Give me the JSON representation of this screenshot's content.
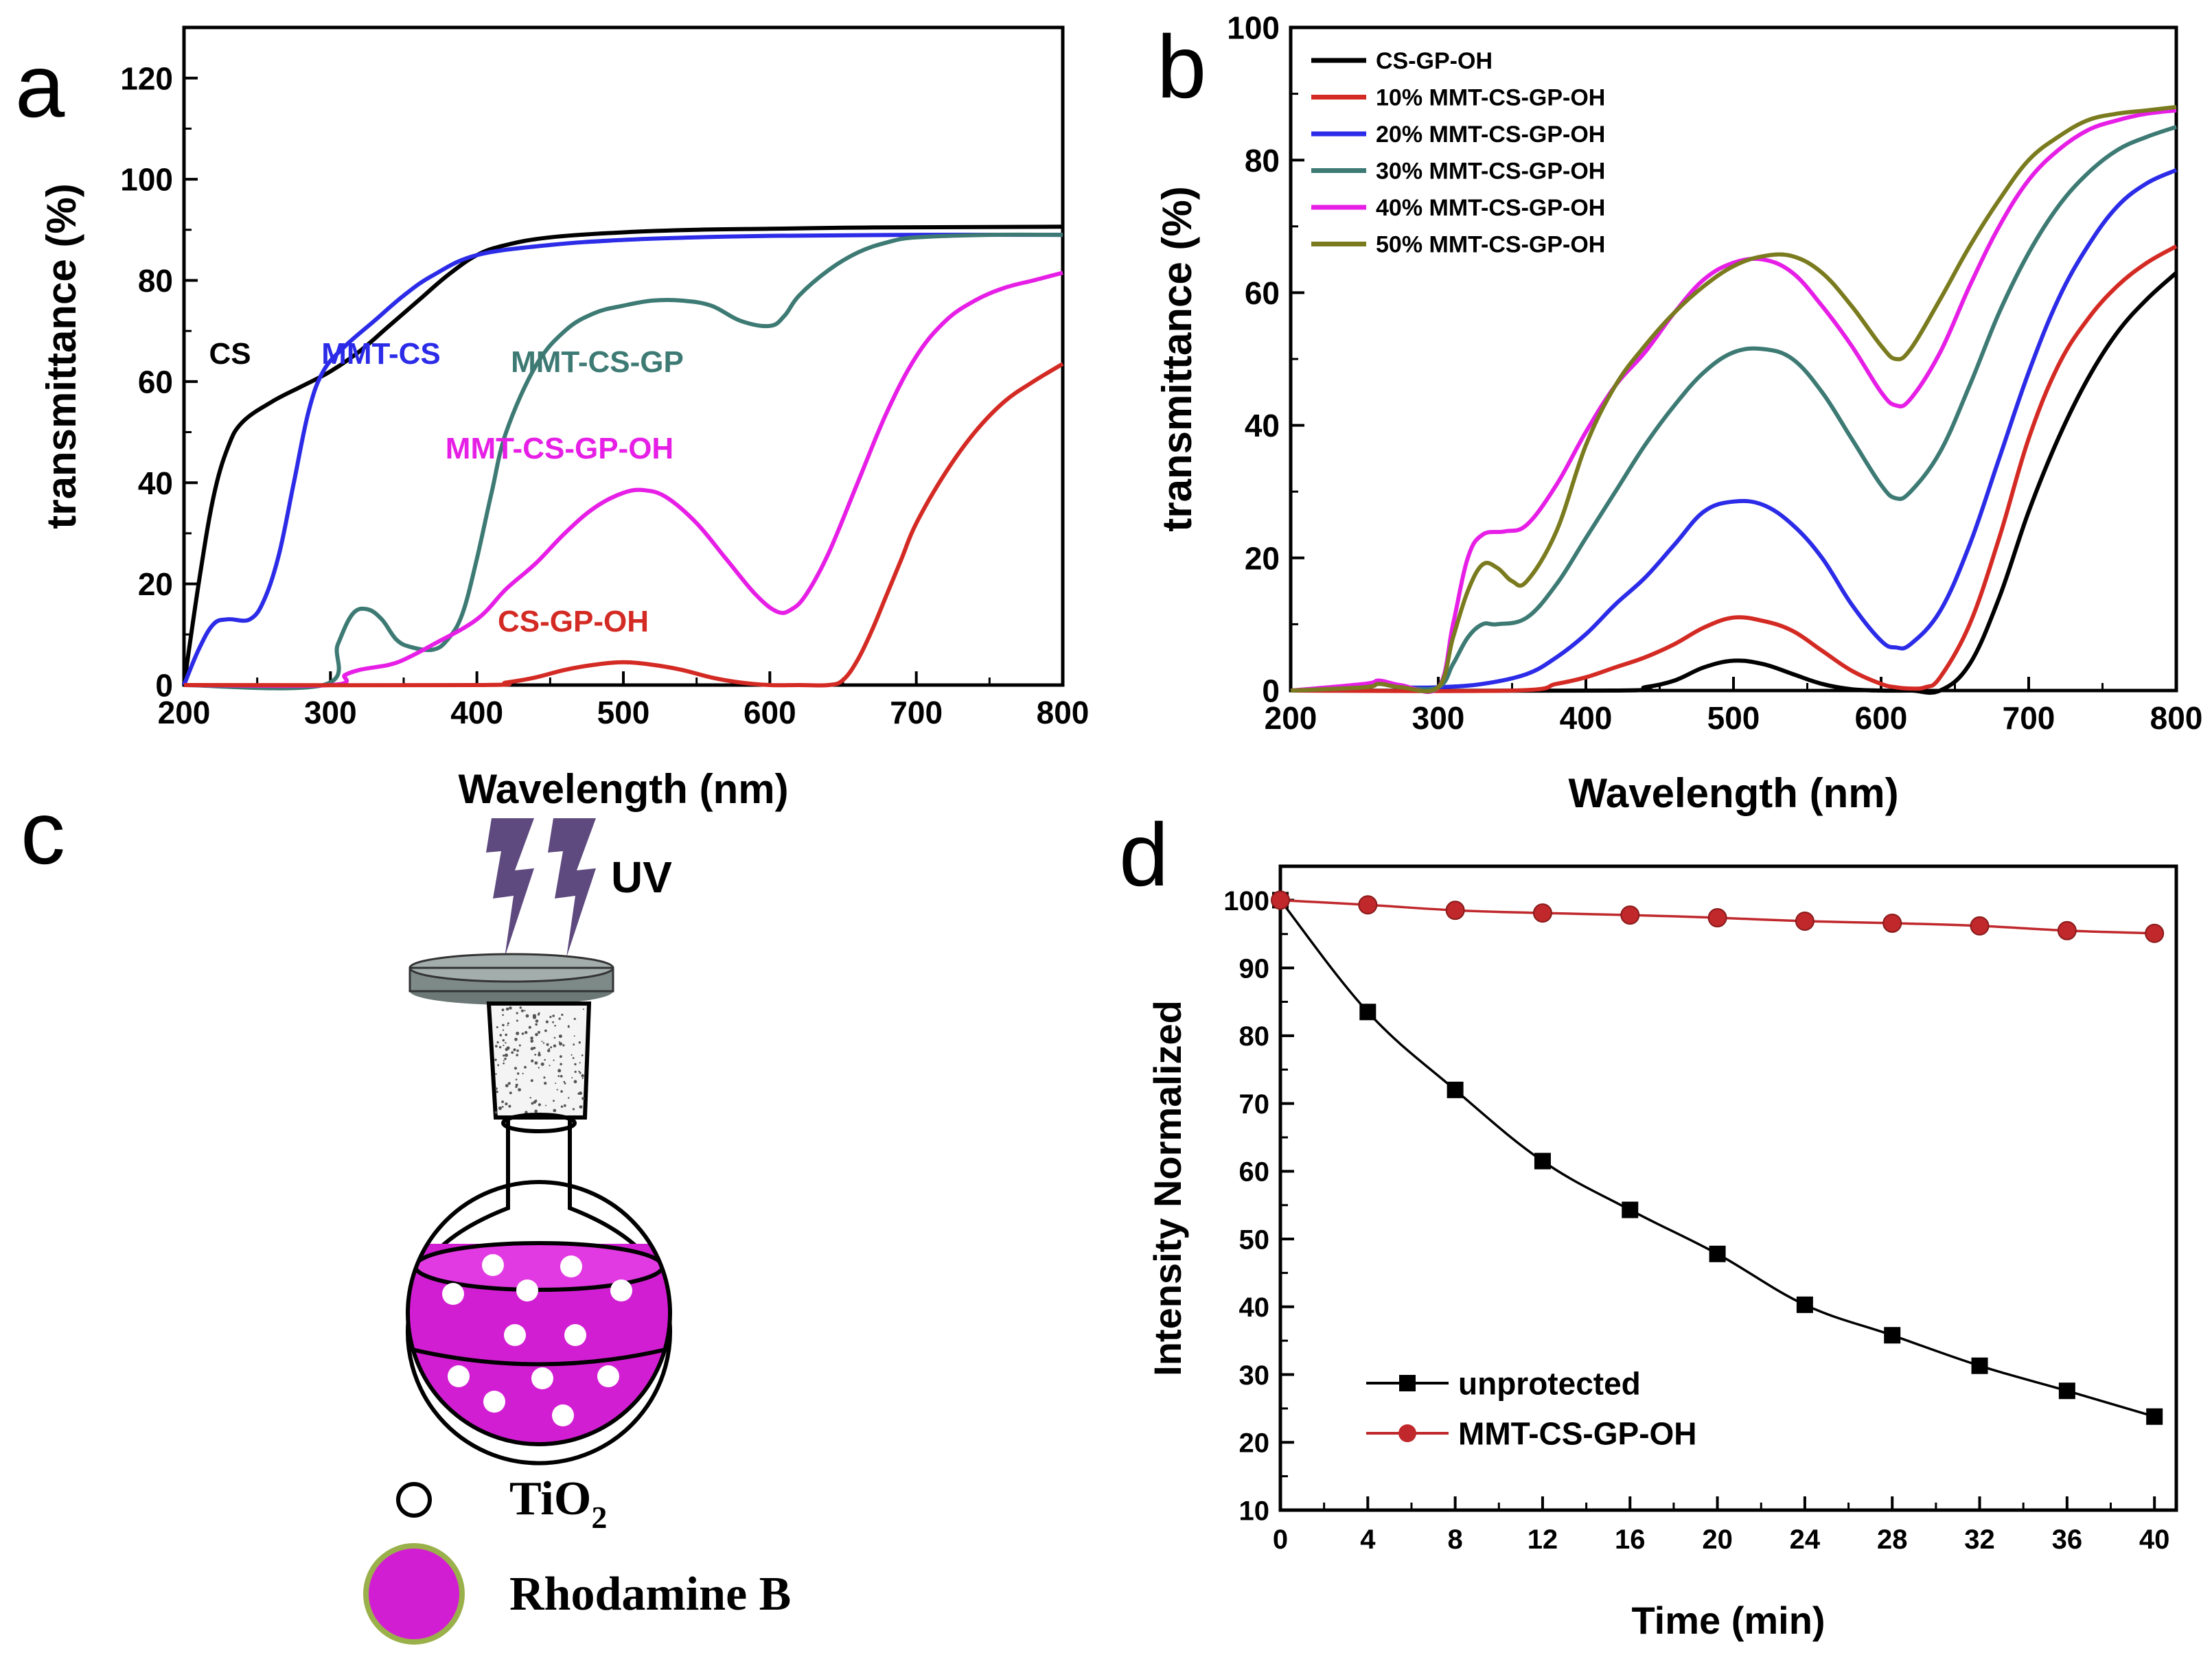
{
  "colors": {
    "black": "#000000",
    "red": "#d42a24",
    "blue": "#2b2be8",
    "teal": "#3d7a74",
    "magenta": "#e61ee6",
    "olive": "#7a7a1e",
    "darkred": "#c0282c",
    "flask_fill": "#d21ed2",
    "bolt": "#5e4a7e",
    "cap": "#7d8a88",
    "rim": "#9ab04a"
  },
  "chart_data": [
    {
      "id": "a",
      "panel_label": "a",
      "type": "line",
      "xlabel": "Wavelength (nm)",
      "ylabel": "transmittance (%)",
      "xlim": [
        200,
        800
      ],
      "ylim": [
        0,
        130
      ],
      "xticks": [
        "200",
        "300",
        "400",
        "500",
        "600",
        "700",
        "800"
      ],
      "yticks": [
        "0",
        "20",
        "40",
        "60",
        "80",
        "100",
        "120"
      ],
      "annotations": [
        {
          "text": "CS",
          "color": "black",
          "at": [
            240,
            63
          ]
        },
        {
          "text": "MMT-CS",
          "color": "blue",
          "at": [
            335,
            63
          ]
        },
        {
          "text": "MMT-CS-GP",
          "color": "teal",
          "at": [
            500,
            61
          ]
        },
        {
          "text": "MMT-CS-GP-OH",
          "color": "magenta",
          "at": [
            530,
            46
          ]
        },
        {
          "text": "CS-GP-OH",
          "color": "red",
          "at": [
            528,
            10
          ]
        }
      ],
      "series": [
        {
          "name": "CS",
          "color": "black",
          "x": [
            200,
            210,
            220,
            230,
            240,
            260,
            280,
            300,
            320,
            340,
            360,
            380,
            400,
            420,
            450,
            500,
            550,
            600,
            650,
            700,
            800
          ],
          "y": [
            0,
            20,
            37,
            47,
            52,
            56,
            59,
            62,
            66,
            71,
            76,
            81,
            85,
            87,
            88.5,
            89.5,
            90,
            90.2,
            90.4,
            90.5,
            90.6
          ]
        },
        {
          "name": "MMT-CS",
          "color": "blue",
          "x": [
            200,
            210,
            220,
            230,
            245,
            255,
            265,
            275,
            285,
            295,
            310,
            330,
            350,
            370,
            400,
            450,
            500,
            550,
            600,
            700,
            800
          ],
          "y": [
            0,
            7,
            12,
            13,
            13,
            17,
            26,
            40,
            54,
            62,
            67,
            72,
            77,
            81,
            85,
            87,
            88,
            88.5,
            88.8,
            89,
            89
          ]
        },
        {
          "name": "MMT-CS-GP",
          "color": "teal",
          "x": [
            200,
            295,
            305,
            315,
            325,
            335,
            345,
            355,
            370,
            380,
            390,
            400,
            410,
            420,
            440,
            460,
            480,
            500,
            520,
            540,
            560,
            580,
            600,
            610,
            620,
            640,
            660,
            680,
            700,
            750,
            800
          ],
          "y": [
            0,
            0,
            8,
            14,
            15,
            13,
            9,
            7.5,
            7,
            9,
            14,
            25,
            38,
            50,
            63,
            70,
            73.5,
            75,
            76,
            76,
            75,
            72,
            71,
            73,
            77,
            82,
            85.5,
            87.5,
            88.5,
            89,
            89
          ]
        },
        {
          "name": "MMT-CS-GP-OH",
          "color": "magenta",
          "x": [
            200,
            300,
            310,
            320,
            330,
            340,
            350,
            370,
            400,
            420,
            440,
            460,
            480,
            500,
            515,
            530,
            550,
            570,
            590,
            605,
            615,
            625,
            640,
            660,
            680,
            700,
            720,
            740,
            760,
            780,
            800
          ],
          "y": [
            0,
            0,
            2,
            3,
            3.5,
            4,
            5,
            8,
            13,
            19,
            24,
            30,
            35,
            38,
            38.5,
            37,
            32,
            25,
            18,
            14.5,
            15,
            18,
            26,
            40,
            54,
            65,
            72,
            76,
            78.5,
            80,
            81.5
          ]
        },
        {
          "name": "CS-GP-OH",
          "color": "red",
          "x": [
            200,
            400,
            420,
            440,
            460,
            480,
            500,
            520,
            540,
            560,
            580,
            600,
            620,
            640,
            650,
            660,
            670,
            680,
            690,
            700,
            720,
            740,
            760,
            780,
            800
          ],
          "y": [
            0,
            0,
            0.5,
            1.5,
            3,
            4,
            4.5,
            4,
            3,
            1.5,
            0.5,
            0,
            0,
            0,
            1,
            5,
            11,
            18,
            25,
            32,
            42,
            50,
            56,
            60,
            63.5
          ]
        }
      ]
    },
    {
      "id": "b",
      "panel_label": "b",
      "type": "line",
      "xlabel": "Wavelength (nm)",
      "ylabel": "transmittance (%)",
      "xlim": [
        200,
        800
      ],
      "ylim": [
        0,
        100
      ],
      "xticks": [
        "200",
        "300",
        "400",
        "500",
        "600",
        "700",
        "800"
      ],
      "yticks": [
        "0",
        "20",
        "40",
        "60",
        "80",
        "100"
      ],
      "legend_position": "top-left",
      "series": [
        {
          "name": "CS-GP-OH",
          "color": "black",
          "x": [
            200,
            420,
            440,
            460,
            480,
            500,
            520,
            540,
            560,
            580,
            600,
            620,
            640,
            660,
            680,
            700,
            720,
            740,
            760,
            780,
            800
          ],
          "y": [
            0,
            0,
            0.5,
            1.5,
            3.5,
            4.5,
            4,
            2.5,
            1,
            0.2,
            0,
            0,
            0,
            4,
            14,
            27,
            38,
            47,
            54,
            59,
            63
          ]
        },
        {
          "name": "10% MMT-CS-GP-OH",
          "color": "red",
          "x": [
            200,
            350,
            380,
            400,
            420,
            440,
            460,
            480,
            500,
            520,
            540,
            560,
            580,
            600,
            610,
            620,
            630,
            640,
            660,
            680,
            700,
            720,
            740,
            760,
            780,
            800
          ],
          "y": [
            0,
            0,
            1,
            2,
            3.5,
            5,
            7,
            9.5,
            11,
            10.5,
            9,
            6,
            3,
            1,
            0.5,
            0.3,
            0.5,
            2,
            10,
            23,
            38,
            49,
            56,
            61,
            64.5,
            67
          ]
        },
        {
          "name": "20% MMT-CS-GP-OH",
          "color": "blue",
          "x": [
            200,
            250,
            260,
            275,
            300,
            330,
            360,
            380,
            400,
            420,
            440,
            460,
            480,
            500,
            520,
            540,
            560,
            580,
            600,
            610,
            620,
            640,
            660,
            680,
            700,
            720,
            740,
            760,
            780,
            800
          ],
          "y": [
            0,
            0.5,
            1,
            0.5,
            0.5,
            1,
            2.5,
            5,
            8.5,
            13,
            17,
            22,
            27,
            28.5,
            28,
            25,
            20,
            13,
            7.5,
            6.5,
            7,
            12,
            22,
            35,
            48,
            59,
            67,
            73,
            76.5,
            78.5
          ]
        },
        {
          "name": "30% MMT-CS-GP-OH",
          "color": "teal",
          "x": [
            200,
            250,
            260,
            275,
            300,
            310,
            320,
            330,
            340,
            360,
            380,
            400,
            420,
            440,
            460,
            480,
            500,
            520,
            540,
            560,
            580,
            600,
            610,
            620,
            640,
            660,
            680,
            700,
            720,
            740,
            760,
            780,
            800
          ],
          "y": [
            0,
            0.5,
            1,
            0.5,
            0.5,
            4,
            8,
            10,
            10,
            11,
            16,
            23,
            30,
            37,
            43,
            48,
            51,
            51.5,
            50,
            45,
            38,
            31,
            29,
            30,
            36,
            46,
            57,
            66,
            73,
            78,
            81.5,
            83.5,
            85
          ]
        },
        {
          "name": "40% MMT-CS-GP-OH",
          "color": "magenta",
          "x": [
            200,
            250,
            260,
            275,
            300,
            310,
            320,
            330,
            345,
            360,
            380,
            400,
            420,
            440,
            460,
            480,
            500,
            520,
            540,
            560,
            580,
            600,
            610,
            620,
            640,
            660,
            680,
            700,
            720,
            740,
            760,
            780,
            800
          ],
          "y": [
            0,
            1,
            1.5,
            0.8,
            0.5,
            10,
            20,
            23.5,
            24,
            25,
            31,
            39,
            46,
            51,
            57,
            62,
            64.5,
            65,
            63,
            58,
            52,
            45,
            43,
            44,
            51,
            61,
            70,
            77,
            81.5,
            84.5,
            86,
            87,
            87.5
          ]
        },
        {
          "name": "50% MMT-CS-GP-OH",
          "color": "olive",
          "x": [
            200,
            250,
            260,
            275,
            300,
            310,
            320,
            330,
            340,
            350,
            360,
            380,
            400,
            420,
            440,
            460,
            480,
            500,
            520,
            540,
            560,
            580,
            600,
            610,
            620,
            640,
            660,
            680,
            700,
            720,
            740,
            760,
            780,
            800
          ],
          "y": [
            0,
            0.5,
            1,
            0.5,
            0.5,
            8,
            15,
            19,
            18.5,
            16.5,
            16.5,
            24,
            37,
            46,
            52,
            57,
            61,
            64,
            65.5,
            65.5,
            63,
            58,
            52,
            50,
            51.5,
            59,
            67,
            74,
            80,
            83.5,
            86,
            87,
            87.5,
            88
          ]
        }
      ]
    },
    {
      "id": "d",
      "panel_label": "d",
      "type": "line",
      "xlabel": "Time (min)",
      "ylabel": "Intensity Normalized",
      "xlim": [
        0,
        41
      ],
      "ylim": [
        10,
        105
      ],
      "xticks": [
        "0",
        "4",
        "8",
        "12",
        "16",
        "20",
        "24",
        "28",
        "32",
        "36",
        "40"
      ],
      "yticks": [
        "10",
        "20",
        "30",
        "40",
        "50",
        "60",
        "70",
        "80",
        "90",
        "100"
      ],
      "legend_position": "bottom-left",
      "series": [
        {
          "name": "unprotected",
          "color": "black",
          "marker": "square",
          "x": [
            0,
            4,
            8,
            12,
            16,
            20,
            24,
            28,
            32,
            36,
            40
          ],
          "y": [
            100,
            83.5,
            72,
            61.5,
            54.3,
            47.8,
            40.3,
            35.8,
            31.3,
            27.6,
            23.8
          ]
        },
        {
          "name": "MMT-CS-GP-OH",
          "color": "darkred",
          "marker": "circle",
          "x": [
            0,
            4,
            8,
            12,
            16,
            20,
            24,
            28,
            32,
            36,
            40
          ],
          "y": [
            100,
            99.3,
            98.5,
            98.1,
            97.8,
            97.4,
            96.9,
            96.6,
            96.2,
            95.5,
            95.1
          ]
        }
      ]
    }
  ],
  "panel_c": {
    "label": "c",
    "uv_label": "UV",
    "legend": [
      {
        "symbol": "open-circle",
        "text": "TiO",
        "subscript": "2"
      },
      {
        "symbol": "filled-circle",
        "text": "Rhodamine B"
      }
    ]
  }
}
